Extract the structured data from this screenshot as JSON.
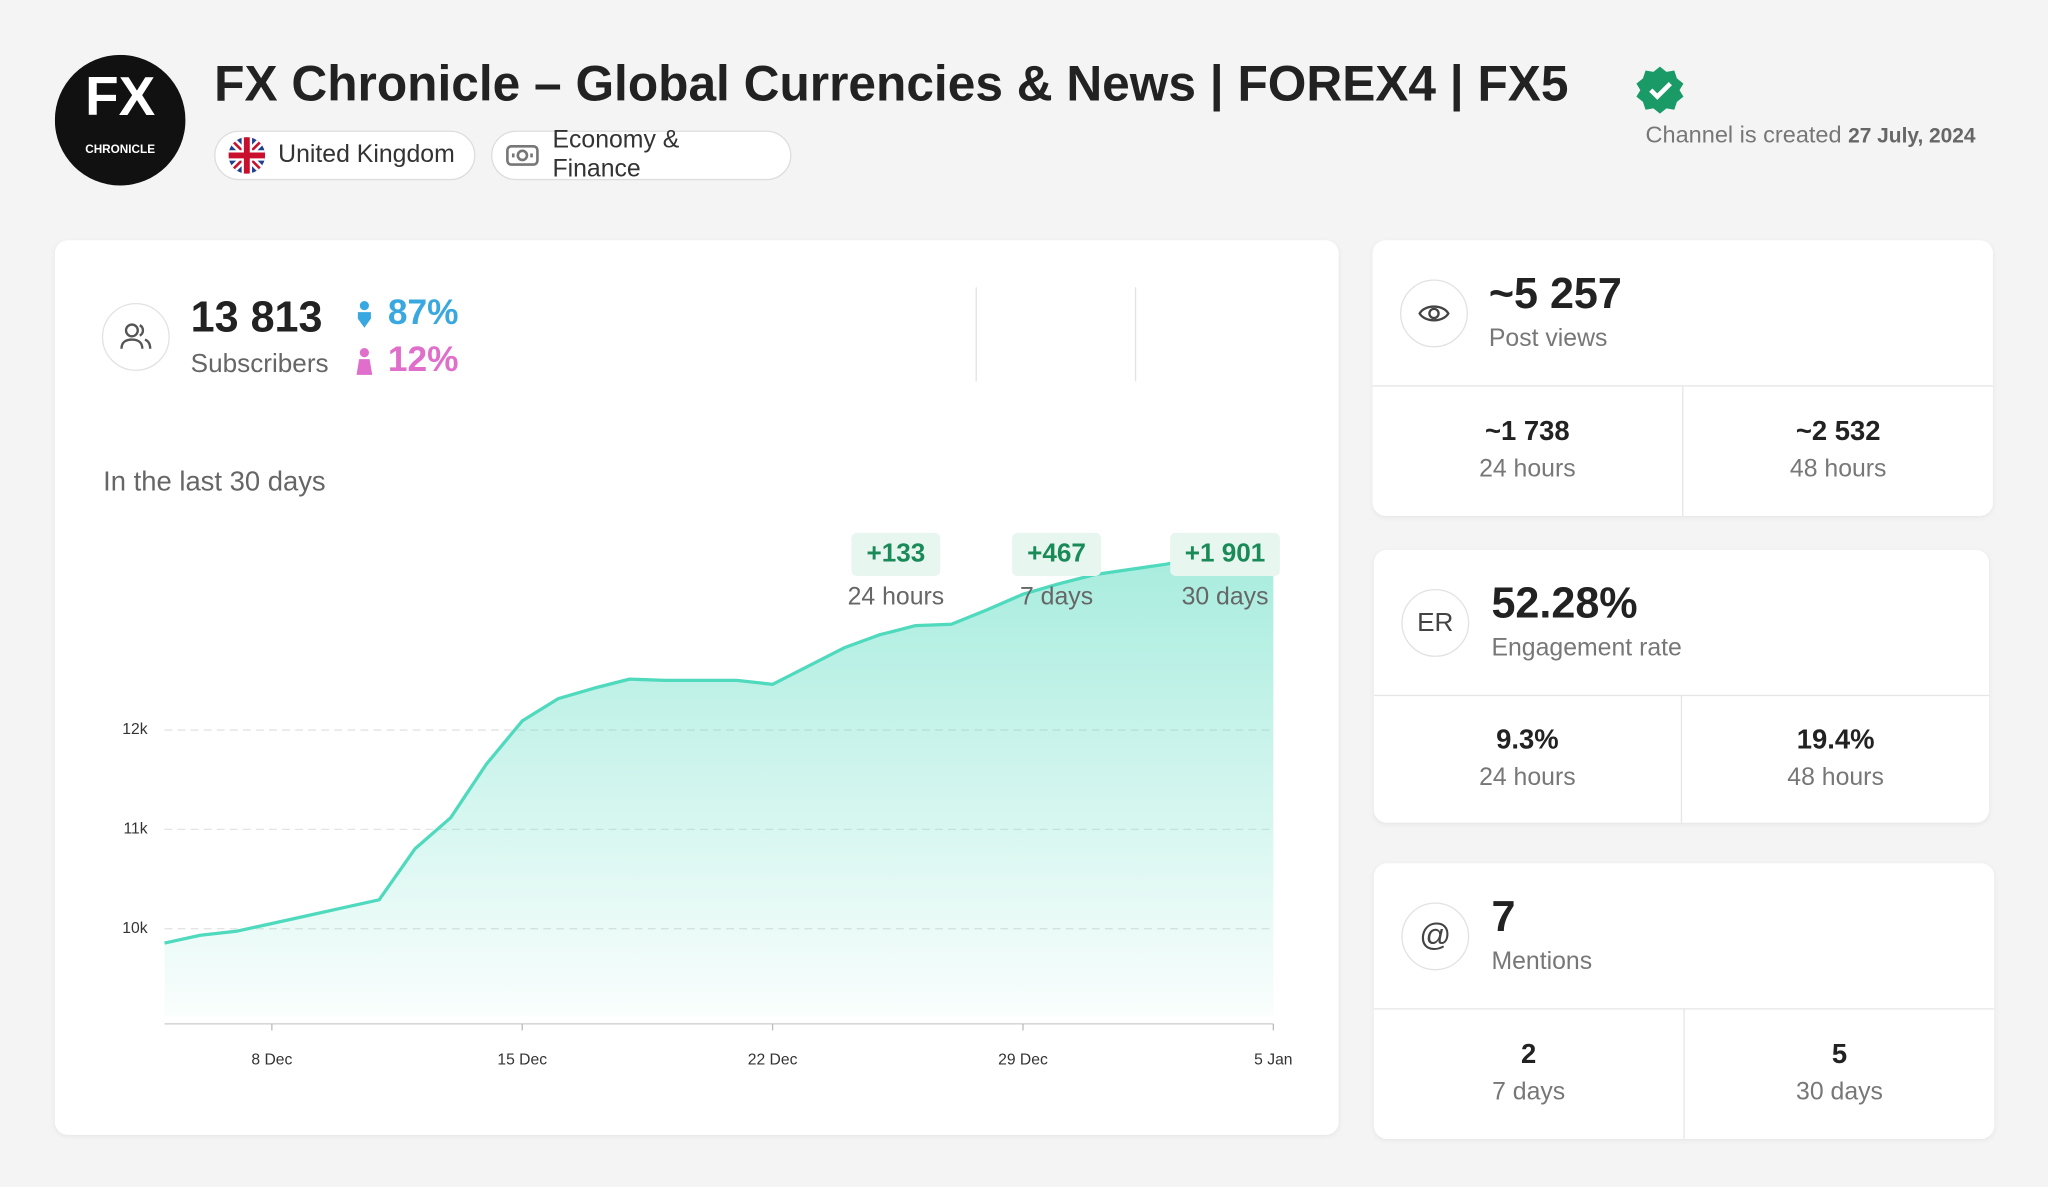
{
  "header": {
    "logo": {
      "big": "FX",
      "small": "CHRONICLE"
    },
    "title": "FX Chronicle – Global Currencies & News | FOREX4 | FX5",
    "tags": [
      "United Kingdom",
      "Economy & Finance"
    ],
    "created_label": "Channel is created",
    "created_date": "27 July, 2024"
  },
  "subscribers": {
    "value": "13 813",
    "label": "Subscribers",
    "male": "87%",
    "female": "12%",
    "changes": [
      {
        "value": "+133",
        "label": "24 hours"
      },
      {
        "value": "+467",
        "label": "7 days"
      },
      {
        "value": "+1 901",
        "label": "30 days"
      }
    ]
  },
  "chart_data": {
    "type": "area",
    "title": "In the last 30 days",
    "color": "#4fd9bd",
    "categories": [
      null,
      null,
      null,
      "8 Dec",
      null,
      null,
      null,
      null,
      null,
      null,
      "15 Dec",
      null,
      null,
      null,
      null,
      null,
      null,
      "22 Dec",
      null,
      null,
      null,
      null,
      null,
      null,
      "29 Dec",
      null,
      null,
      null,
      null,
      null,
      null,
      "5 Jan"
    ],
    "values": [
      9855,
      9934,
      9974,
      10053,
      10132,
      10211,
      10290,
      10803,
      11118,
      11658,
      12092,
      12316,
      12421,
      12513,
      12500,
      12500,
      12500,
      12461,
      12645,
      12829,
      12961,
      13053,
      13066,
      13211,
      13368,
      13474,
      13566,
      13618,
      13671,
      13737,
      13803,
      13813
    ],
    "ylim": [
      9120,
      13960
    ],
    "yticks": [
      {
        "value": 10000,
        "label": "10k"
      },
      {
        "value": 11000,
        "label": "11k"
      },
      {
        "value": 12000,
        "label": "12k"
      }
    ],
    "grid": true
  },
  "cards": [
    {
      "icon": null,
      "value": "~5 257",
      "label": "Post views",
      "subs": [
        {
          "value": "~1 738",
          "label": "24 hours"
        },
        {
          "value": "~2 532",
          "label": "48 hours"
        }
      ]
    },
    {
      "icon": "ER",
      "value": "52.28%",
      "label": "Engagement rate",
      "subs": [
        {
          "value": "9.3%",
          "label": "24 hours"
        },
        {
          "value": "19.4%",
          "label": "48 hours"
        }
      ]
    },
    {
      "icon": "@",
      "value": "7",
      "label": "Mentions",
      "subs": [
        {
          "value": "2",
          "label": "7 days"
        },
        {
          "value": "5",
          "label": "30 days"
        }
      ]
    }
  ]
}
